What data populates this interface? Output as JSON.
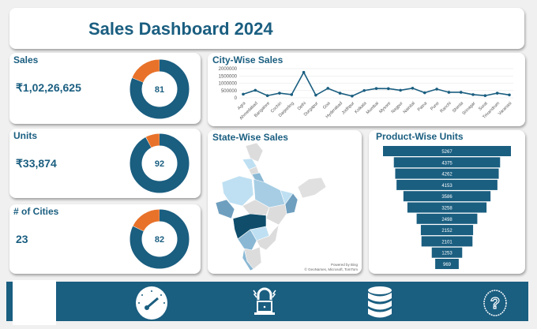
{
  "header": {
    "title": "Sales Dashboard 2024"
  },
  "colors": {
    "primary": "#1a5e80",
    "accent": "#e8722a",
    "ring_gap": "#ffffff"
  },
  "kpis": [
    {
      "label": "Sales",
      "value": "₹1,02,26,625",
      "gauge": "81",
      "percent": 81
    },
    {
      "label": "Units",
      "value": "₹33,874",
      "gauge": "92",
      "percent": 92
    },
    {
      "label": "# of Cities",
      "value": "23",
      "gauge": "82",
      "percent": 82
    }
  ],
  "chart_data": [
    {
      "type": "line",
      "title": "City-Wise Sales",
      "ylim": [
        0,
        2000000
      ],
      "yticks": [
        "0",
        "500000",
        "1000000",
        "1500000",
        "2000000"
      ],
      "categories": [
        "Agra",
        "Ahmedabad",
        "Bangalore",
        "Cochin",
        "Darjeeling",
        "Delhi",
        "Durgapur",
        "Goa",
        "Hyderabad",
        "Jodhpur",
        "Kolkata",
        "Mumbai",
        "Mysore",
        "Nagpur",
        "Nainital",
        "Patna",
        "Pune",
        "Ranchi",
        "Shimla",
        "Srinagar",
        "Surat",
        "Trivandrum",
        "Varanasi"
      ],
      "values": [
        250000,
        520000,
        150000,
        320000,
        220000,
        1750000,
        180000,
        650000,
        320000,
        120000,
        500000,
        640000,
        630000,
        520000,
        660000,
        350000,
        600000,
        380000,
        380000,
        220000,
        150000,
        320000,
        200000
      ],
      "grid": true
    },
    {
      "type": "bar",
      "orientation": "funnel",
      "title": "Product-Wise Units",
      "values": [
        5267,
        4375,
        4262,
        4153,
        3586,
        3258,
        2498,
        2152,
        2101,
        1253,
        969
      ]
    }
  ],
  "map": {
    "title": "State-Wise Sales",
    "attribution_1": "Powered by Bing",
    "attribution_2": "© GeoNames, Microsoft, TomTom"
  },
  "nav": {
    "icons": [
      "speedometer-icon",
      "alarm-laptop-icon",
      "database-icon",
      "help-icon"
    ]
  }
}
